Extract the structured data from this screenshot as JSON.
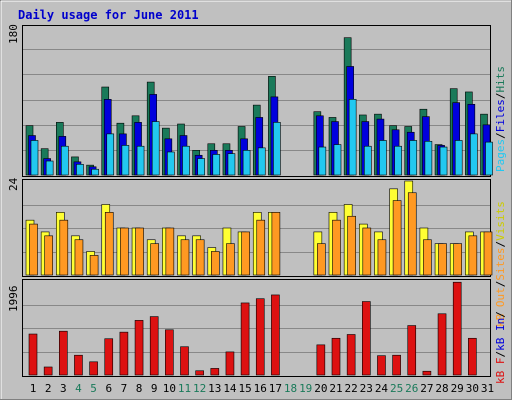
{
  "title": "Daily usage for June 2011",
  "labels": {
    "top_scale": "180",
    "mid_scale": "24",
    "bot_scale": "1996",
    "top_right_1": "Pages",
    "top_right_2": "Files",
    "top_right_3": "Hits",
    "mid_right_1": "Visits",
    "mid_right_2": "Sites",
    "mid_right_3": "kB Out",
    "bot_right_1": "kB In",
    "bot_right_2": "kB F"
  },
  "colors": {
    "background": "#c0c0c0",
    "frame": "#ffffff",
    "title": "#0000cc",
    "hits": "#1a7a5a",
    "files": "#0000dd",
    "pages": "#22c8f0",
    "visits": "#ffff33",
    "sites": "#ff9922",
    "kbin": "#dd1111",
    "weekend": "#1a7a5a",
    "weekday": "#000000"
  },
  "chart_data": [
    {
      "type": "bar",
      "title": "Daily usage for June 2011",
      "categories": [
        "1",
        "2",
        "3",
        "4",
        "5",
        "6",
        "7",
        "8",
        "9",
        "10",
        "11",
        "12",
        "13",
        "14",
        "15",
        "16",
        "17",
        "18",
        "19",
        "20",
        "21",
        "22",
        "23",
        "24",
        "25",
        "26",
        "27",
        "28",
        "29",
        "30",
        "31"
      ],
      "weekend_days": [
        "4",
        "5",
        "11",
        "12",
        "18",
        "19",
        "25",
        "26"
      ],
      "ylim": [
        0,
        180
      ],
      "series": [
        {
          "name": "Hits",
          "values": [
            60,
            32,
            64,
            22,
            12,
            107,
            63,
            72,
            113,
            57,
            62,
            30,
            38,
            38,
            59,
            85,
            120,
            0,
            0,
            77,
            70,
            167,
            73,
            74,
            60,
            59,
            80,
            37,
            105,
            101,
            74
          ]
        },
        {
          "name": "Files",
          "values": [
            48,
            20,
            47,
            16,
            10,
            92,
            50,
            64,
            98,
            44,
            48,
            24,
            30,
            30,
            44,
            70,
            95,
            0,
            0,
            72,
            65,
            132,
            65,
            68,
            55,
            52,
            71,
            36,
            88,
            86,
            61
          ]
        },
        {
          "name": "Pages",
          "values": [
            42,
            17,
            35,
            13,
            7,
            50,
            36,
            35,
            65,
            28,
            35,
            20,
            25,
            26,
            30,
            33,
            64,
            0,
            0,
            34,
            37,
            92,
            35,
            42,
            35,
            42,
            41,
            34,
            42,
            50,
            40
          ]
        }
      ]
    },
    {
      "type": "bar",
      "ylim": [
        0,
        24
      ],
      "categories": [
        "1",
        "2",
        "3",
        "4",
        "5",
        "6",
        "7",
        "8",
        "9",
        "10",
        "11",
        "12",
        "13",
        "14",
        "15",
        "16",
        "17",
        "18",
        "19",
        "20",
        "21",
        "22",
        "23",
        "24",
        "25",
        "26",
        "27",
        "28",
        "29",
        "30",
        "31"
      ],
      "series": [
        {
          "name": "Visits",
          "values": [
            14,
            11,
            16,
            10,
            6,
            18,
            12,
            12,
            9,
            12,
            10,
            10,
            7,
            12,
            11,
            16,
            16,
            0,
            0,
            11,
            16,
            18,
            13,
            11,
            22,
            24,
            12,
            8,
            8,
            11,
            11
          ]
        },
        {
          "name": "Sites",
          "values": [
            13,
            10,
            14,
            9,
            5,
            16,
            12,
            12,
            8,
            12,
            9,
            9,
            6,
            8,
            11,
            14,
            16,
            0,
            0,
            8,
            14,
            15,
            12,
            9,
            19,
            21,
            9,
            8,
            8,
            10,
            11
          ]
        }
      ]
    },
    {
      "type": "bar",
      "ylim": [
        0,
        1996
      ],
      "categories": [
        "1",
        "2",
        "3",
        "4",
        "5",
        "6",
        "7",
        "8",
        "9",
        "10",
        "11",
        "12",
        "13",
        "14",
        "15",
        "16",
        "17",
        "18",
        "19",
        "20",
        "21",
        "22",
        "23",
        "24",
        "25",
        "26",
        "27",
        "28",
        "29",
        "30",
        "31"
      ],
      "series": [
        {
          "name": "kB In",
          "values": [
            870,
            170,
            930,
            420,
            280,
            770,
            910,
            1160,
            1240,
            960,
            600,
            90,
            140,
            490,
            1530,
            1620,
            1700,
            0,
            0,
            640,
            780,
            860,
            1560,
            410,
            420,
            1050,
            80,
            1300,
            1970,
            780,
            0
          ]
        }
      ]
    }
  ]
}
